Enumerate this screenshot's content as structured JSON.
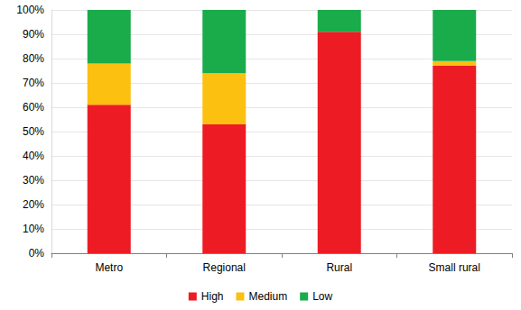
{
  "chart_data": {
    "type": "bar",
    "stacked": true,
    "categories": [
      "Metro",
      "Regional",
      "Rural",
      "Small rural"
    ],
    "series": [
      {
        "name": "High",
        "color": "#ed1c24",
        "values": [
          61,
          53,
          91,
          77
        ]
      },
      {
        "name": "Medium",
        "color": "#fcc010",
        "values": [
          17,
          21,
          0,
          2
        ]
      },
      {
        "name": "Low",
        "color": "#1aab4b",
        "values": [
          22,
          26,
          9,
          21
        ]
      }
    ],
    "ylim": [
      0,
      100
    ],
    "yticks": [
      {
        "value": 0,
        "label": "0%"
      },
      {
        "value": 10,
        "label": "10%"
      },
      {
        "value": 20,
        "label": "20%"
      },
      {
        "value": 30,
        "label": "30%"
      },
      {
        "value": 40,
        "label": "40%"
      },
      {
        "value": 50,
        "label": "50%"
      },
      {
        "value": 60,
        "label": "60%"
      },
      {
        "value": 70,
        "label": "70%"
      },
      {
        "value": 80,
        "label": "80%"
      },
      {
        "value": 90,
        "label": "90%"
      },
      {
        "value": 100,
        "label": "100%"
      }
    ],
    "grid": true,
    "legend": "bottom"
  }
}
